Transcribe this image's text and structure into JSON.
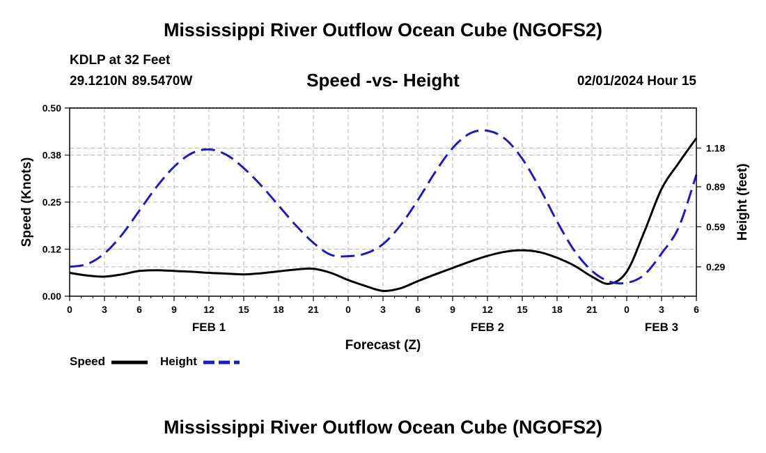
{
  "header": {
    "title": "Mississippi River Outflow Ocean Cube (NGOFS2)",
    "station": "KDLP at 32 Feet",
    "latlon": "29.1210N  89.5470W",
    "datetime": "02/01/2024 Hour 15",
    "footer_title": "Mississippi River Outflow Ocean Cube (NGOFS2)"
  },
  "colors": {
    "speed": "#000000",
    "height": "#1a1acc",
    "grid": "#b4b4b4"
  },
  "chart_data": {
    "type": "line",
    "title": "Speed -vs- Height",
    "xlabel": "Forecast (Z)",
    "ylabel": "Speed (Knots)",
    "y2label": "Height (feet)",
    "xlim": [
      0,
      54
    ],
    "ylim": [
      0,
      0.5
    ],
    "y2lim": [
      0.07,
      1.48
    ],
    "x_ticks": [
      0,
      3,
      6,
      9,
      12,
      15,
      18,
      21,
      24,
      27,
      30,
      33,
      36,
      39,
      42,
      45,
      48,
      51,
      54
    ],
    "x_tick_labels": [
      "0",
      "3",
      "6",
      "9",
      "12",
      "15",
      "18",
      "21",
      "0",
      "3",
      "6",
      "9",
      "12",
      "15",
      "18",
      "21",
      "0",
      "3",
      "6"
    ],
    "y_ticks": [
      0,
      0.125,
      0.25,
      0.375,
      0.5
    ],
    "y_tick_labels": [
      "0.00",
      "0.12",
      "0.25",
      "0.38",
      "0.50"
    ],
    "y2_ticks": [
      0.29,
      0.59,
      0.89,
      1.18
    ],
    "y2_tick_labels": [
      "0.29",
      "0.59",
      "0.89",
      "1.18"
    ],
    "day_labels": [
      {
        "x": 12,
        "label": "FEB 1"
      },
      {
        "x": 36,
        "label": "FEB 2"
      },
      {
        "x": 51,
        "label": "FEB 3"
      }
    ],
    "grid": true,
    "legend": "bottom-left",
    "series": [
      {
        "name": "Speed",
        "axis": "left",
        "style": "solid",
        "x": [
          0,
          1.5,
          3,
          4.5,
          6,
          7.5,
          9,
          10.5,
          12,
          13.5,
          15,
          16.5,
          18,
          19.5,
          21,
          22.5,
          24,
          25.5,
          27,
          28.5,
          30,
          31.5,
          33,
          34.5,
          36,
          37.5,
          39,
          40.5,
          42,
          43.5,
          45,
          46.5,
          48,
          49.5,
          51,
          52.5,
          54
        ],
        "values": [
          0.062,
          0.055,
          0.052,
          0.058,
          0.067,
          0.069,
          0.067,
          0.065,
          0.062,
          0.06,
          0.058,
          0.061,
          0.066,
          0.071,
          0.073,
          0.062,
          0.043,
          0.027,
          0.014,
          0.021,
          0.04,
          0.058,
          0.075,
          0.092,
          0.107,
          0.118,
          0.122,
          0.117,
          0.102,
          0.081,
          0.052,
          0.033,
          0.065,
          0.17,
          0.285,
          0.355,
          0.42
        ]
      },
      {
        "name": "Height",
        "axis": "right",
        "style": "dashed",
        "x": [
          0,
          1.5,
          3,
          4.5,
          6,
          7.5,
          9,
          10.5,
          12,
          13.5,
          15,
          16.5,
          18,
          19.5,
          21,
          22.5,
          24,
          25.5,
          27,
          28.5,
          30,
          31.5,
          33,
          34.5,
          36,
          37.5,
          39,
          40.5,
          42,
          43.5,
          45,
          46.5,
          48,
          49.5,
          51,
          52.5,
          54
        ],
        "values": [
          0.29,
          0.31,
          0.39,
          0.53,
          0.71,
          0.89,
          1.04,
          1.14,
          1.17,
          1.13,
          1.03,
          0.9,
          0.75,
          0.6,
          0.47,
          0.38,
          0.37,
          0.39,
          0.46,
          0.6,
          0.79,
          1.0,
          1.18,
          1.29,
          1.31,
          1.25,
          1.1,
          0.88,
          0.63,
          0.41,
          0.26,
          0.18,
          0.17,
          0.23,
          0.39,
          0.59,
          0.98
        ]
      }
    ]
  },
  "legend_items": [
    {
      "label": "Speed"
    },
    {
      "label": "Height"
    }
  ]
}
